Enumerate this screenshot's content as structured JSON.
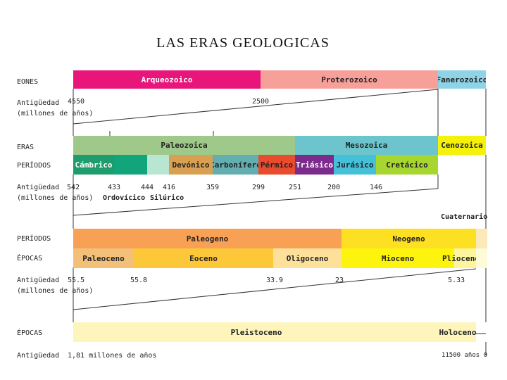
{
  "title": "LAS  ERAS  GEOLOGICAS",
  "labels": {
    "eones": "EONES",
    "antiguedad1a": "Antigüedad",
    "antiguedad1b": "(millones de años)",
    "eras": "ERAS",
    "periodos1": "PERÍODOS",
    "antiguedad2a": "Antigüedad",
    "antiguedad2b": "(millones de años)",
    "periodos2": "PERÍODOS",
    "epocas1": "ÉPOCAS",
    "antiguedad3a": "Antigüedad",
    "antiguedad3b": "(millones de años)",
    "epocas2": "ÉPOCAS",
    "antiguedad4": "Antigüedad"
  },
  "eones": [
    {
      "name": "Arqueozoico",
      "color": "#e8157a"
    },
    {
      "name": "Proterozoico",
      "color": "#f7a09a"
    },
    {
      "name": "Fanerozoico",
      "color": "#8fd3e6"
    }
  ],
  "eones_ages": [
    "4550",
    "2500"
  ],
  "eras": [
    {
      "name": "Paleozoica",
      "color": "#9ec98a"
    },
    {
      "name": "Mesozoica",
      "color": "#6cc5cc"
    },
    {
      "name": "Cenozoica",
      "color": "#f5f10a"
    }
  ],
  "periodos": [
    {
      "name": "Cámbrico",
      "color": "#1e9c6e"
    },
    {
      "name": "",
      "color": "#12a47a"
    },
    {
      "name": "",
      "color": "#b8e6d3"
    },
    {
      "name": "Devónico",
      "color": "#d8a050"
    },
    {
      "name": "Carbonífero",
      "color": "#62aeb0"
    },
    {
      "name": "Pérmico",
      "color": "#e84b2e"
    },
    {
      "name": "Triásico",
      "color": "#7c2a8c"
    },
    {
      "name": "Jurásico",
      "color": "#44c0d8"
    },
    {
      "name": "Cretácico",
      "color": "#a7d631"
    }
  ],
  "periodos_ages": [
    "542",
    "433",
    "444",
    "416",
    "359",
    "299",
    "251",
    "200",
    "146"
  ],
  "periodos_sub": [
    "Ordovícico",
    "Silúrico"
  ],
  "cuaternario": "Cuaternario",
  "periodos2": [
    {
      "name": "Paleogeno",
      "color": "#f8a155"
    },
    {
      "name": "Neogeno",
      "color": "#fde022"
    },
    {
      "name": "",
      "color": "#fde8b8"
    }
  ],
  "epocas1": [
    {
      "name": "Paleoceno",
      "color": "#f3c07a"
    },
    {
      "name": "Eoceno",
      "color": "#fcc83a"
    },
    {
      "name": "Oligoceno",
      "color": "#fde19a"
    },
    {
      "name": "Mioceno",
      "color": "#fdf40e"
    },
    {
      "name": "Plioceno",
      "color": "#fdf59e"
    },
    {
      "name": "",
      "color": "#fdfbd8"
    }
  ],
  "epocas1_ages": [
    "55.5",
    "55.8",
    "33.9",
    "23",
    "5.33"
  ],
  "epocas2": [
    {
      "name": "Pleistoceno",
      "color": "#fdf5bb"
    },
    {
      "name": "Holoceno",
      "color": "#fdf5bb"
    }
  ],
  "epocas2_ages": [
    "1,81 millones de años",
    "11500 años 0"
  ]
}
